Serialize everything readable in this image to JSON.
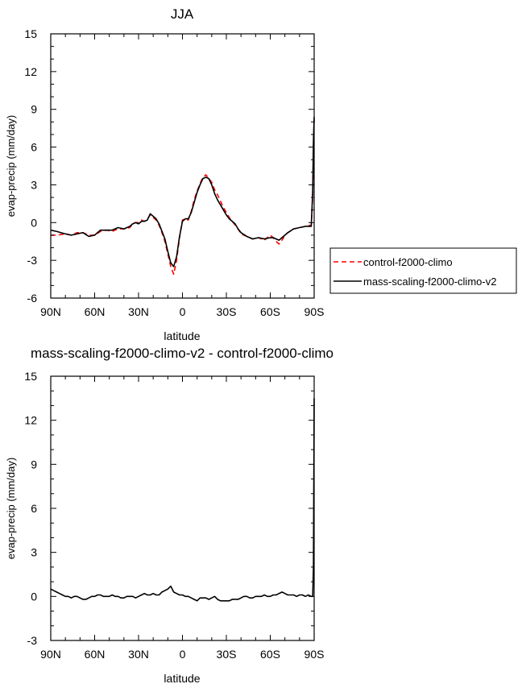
{
  "chart_data": [
    {
      "type": "line",
      "title": "JJA",
      "xlabel": "latitude",
      "ylabel": "evap-precip (mm/day)",
      "xlim": [
        90,
        -90
      ],
      "ylim": [
        -6,
        15
      ],
      "xticks": [
        90,
        60,
        30,
        0,
        -30,
        -60,
        -90
      ],
      "xtick_labels": [
        "90N",
        "60N",
        "30N",
        "0",
        "30S",
        "60S",
        "90S"
      ],
      "yticks": [
        -6,
        -3,
        0,
        3,
        6,
        9,
        12,
        15
      ],
      "ytick_labels": [
        "-6",
        "-3",
        "0",
        "3",
        "6",
        "9",
        "12",
        "15"
      ],
      "legend": "right",
      "series": [
        {
          "name": "control-f2000-climo",
          "color": "#ff0000",
          "dash": "dashed",
          "x": [
            90,
            86,
            80,
            76,
            72,
            68,
            64,
            60,
            56,
            52,
            48,
            44,
            40,
            36,
            34,
            32,
            30,
            28,
            26,
            24,
            22,
            20,
            18,
            16,
            14,
            12,
            10,
            8,
            6,
            4,
            2,
            0,
            -2,
            -4,
            -6,
            -8,
            -10,
            -12,
            -14,
            -16,
            -18,
            -20,
            -22,
            -24,
            -26,
            -28,
            -30,
            -32,
            -34,
            -36,
            -38,
            -40,
            -44,
            -48,
            -52,
            -56,
            -60,
            -62,
            -64,
            -66,
            -68,
            -70,
            -72,
            -76,
            -80,
            -84,
            -88,
            -89,
            -89.5,
            -90
          ],
          "y": [
            -1.0,
            -1.0,
            -0.9,
            -1.0,
            -0.8,
            -0.8,
            -1.0,
            -1.0,
            -0.7,
            -0.6,
            -0.7,
            -0.5,
            -0.5,
            -0.4,
            -0.1,
            0.0,
            0.0,
            0.2,
            0.1,
            0.3,
            0.6,
            0.4,
            0.2,
            -0.2,
            -0.8,
            -1.5,
            -2.5,
            -3.5,
            -4.1,
            -3.0,
            -1.2,
            0.2,
            0.3,
            0.2,
            0.9,
            1.8,
            2.5,
            3.1,
            3.6,
            3.8,
            3.5,
            3.2,
            2.6,
            2.2,
            1.7,
            1.2,
            0.8,
            0.4,
            0.1,
            -0.2,
            -0.5,
            -0.9,
            -1.1,
            -1.3,
            -1.2,
            -1.4,
            -1.0,
            -1.2,
            -1.5,
            -1.7,
            -1.4,
            -1.0,
            -0.8,
            -0.5,
            -0.4,
            -0.3,
            -0.2,
            2.0,
            6.0,
            8.2
          ]
        },
        {
          "name": "mass-scaling-f2000-climo-v2",
          "color": "#000000",
          "dash": "solid",
          "x": [
            90,
            86,
            80,
            76,
            72,
            68,
            64,
            60,
            56,
            52,
            48,
            44,
            40,
            36,
            34,
            32,
            30,
            28,
            26,
            24,
            22,
            20,
            18,
            16,
            14,
            12,
            10,
            8,
            6,
            4,
            2,
            0,
            -2,
            -4,
            -6,
            -8,
            -10,
            -12,
            -14,
            -16,
            -18,
            -20,
            -22,
            -24,
            -26,
            -28,
            -30,
            -32,
            -34,
            -36,
            -38,
            -40,
            -44,
            -48,
            -52,
            -56,
            -60,
            -62,
            -64,
            -66,
            -68,
            -70,
            -72,
            -76,
            -80,
            -84,
            -88,
            -89,
            -89.5,
            -90
          ],
          "y": [
            -0.6,
            -0.7,
            -0.9,
            -1.0,
            -0.9,
            -0.8,
            -1.1,
            -1.0,
            -0.6,
            -0.6,
            -0.6,
            -0.4,
            -0.5,
            -0.3,
            -0.1,
            0.0,
            -0.1,
            0.1,
            0.1,
            0.2,
            0.7,
            0.5,
            0.3,
            -0.1,
            -0.7,
            -1.3,
            -2.3,
            -3.2,
            -3.5,
            -2.7,
            -1.1,
            0.1,
            0.3,
            0.3,
            0.8,
            1.6,
            2.4,
            3.0,
            3.5,
            3.6,
            3.5,
            3.0,
            2.3,
            1.8,
            1.4,
            1.0,
            0.6,
            0.3,
            0.1,
            -0.1,
            -0.5,
            -0.8,
            -1.1,
            -1.3,
            -1.2,
            -1.3,
            -1.2,
            -1.2,
            -1.3,
            -1.4,
            -1.2,
            -1.0,
            -0.8,
            -0.5,
            -0.4,
            -0.3,
            -0.3,
            2.5,
            6.5,
            8.4
          ]
        }
      ]
    },
    {
      "type": "line",
      "title": "mass-scaling-f2000-climo-v2 - control-f2000-climo",
      "xlabel": "latitude",
      "ylabel": "evap-precip (mm/day)",
      "xlim": [
        90,
        -90
      ],
      "ylim": [
        -3,
        15
      ],
      "xticks": [
        90,
        60,
        30,
        0,
        -30,
        -60,
        -90
      ],
      "xtick_labels": [
        "90N",
        "60N",
        "30N",
        "0",
        "30S",
        "60S",
        "90S"
      ],
      "yticks": [
        -3,
        0,
        3,
        6,
        9,
        12,
        15
      ],
      "ytick_labels": [
        "-3",
        "0",
        "3",
        "6",
        "9",
        "12",
        "15"
      ],
      "series": [
        {
          "color": "#000000",
          "dash": "solid",
          "x": [
            90,
            88,
            86,
            84,
            82,
            80,
            78,
            76,
            74,
            72,
            70,
            68,
            66,
            64,
            62,
            60,
            58,
            56,
            54,
            52,
            50,
            48,
            46,
            44,
            42,
            40,
            38,
            36,
            34,
            32,
            30,
            28,
            26,
            24,
            22,
            20,
            18,
            16,
            14,
            12,
            10,
            8,
            6,
            4,
            2,
            0,
            -2,
            -4,
            -6,
            -8,
            -10,
            -12,
            -14,
            -16,
            -18,
            -20,
            -22,
            -24,
            -26,
            -28,
            -30,
            -32,
            -34,
            -36,
            -38,
            -40,
            -42,
            -44,
            -46,
            -48,
            -50,
            -52,
            -54,
            -56,
            -58,
            -60,
            -62,
            -64,
            -66,
            -68,
            -70,
            -72,
            -74,
            -76,
            -78,
            -80,
            -82,
            -84,
            -86,
            -88,
            -89,
            -89.5,
            -90
          ],
          "y": [
            0.5,
            0.4,
            0.3,
            0.2,
            0.1,
            0.0,
            0.0,
            -0.1,
            0.0,
            0.0,
            -0.1,
            -0.2,
            -0.2,
            -0.1,
            0.0,
            0.0,
            0.1,
            0.1,
            0.0,
            0.0,
            0.0,
            0.1,
            0.0,
            0.0,
            -0.1,
            -0.1,
            0.0,
            0.0,
            0.0,
            -0.1,
            0.0,
            0.1,
            0.2,
            0.1,
            0.1,
            0.2,
            0.1,
            0.1,
            0.3,
            0.4,
            0.5,
            0.7,
            0.3,
            0.2,
            0.1,
            0.1,
            0.0,
            0.0,
            -0.1,
            -0.2,
            -0.3,
            -0.1,
            -0.1,
            -0.1,
            -0.2,
            -0.1,
            0.0,
            -0.2,
            -0.3,
            -0.3,
            -0.3,
            -0.3,
            -0.2,
            -0.2,
            -0.2,
            -0.1,
            0.0,
            0.0,
            -0.1,
            -0.1,
            0.0,
            0.0,
            0.0,
            0.1,
            0.0,
            0.0,
            0.1,
            0.1,
            0.2,
            0.3,
            0.2,
            0.1,
            0.1,
            0.1,
            0.0,
            0.1,
            0.1,
            0.0,
            0.1,
            0.0,
            0.0,
            2.0,
            13.5
          ]
        }
      ]
    }
  ]
}
